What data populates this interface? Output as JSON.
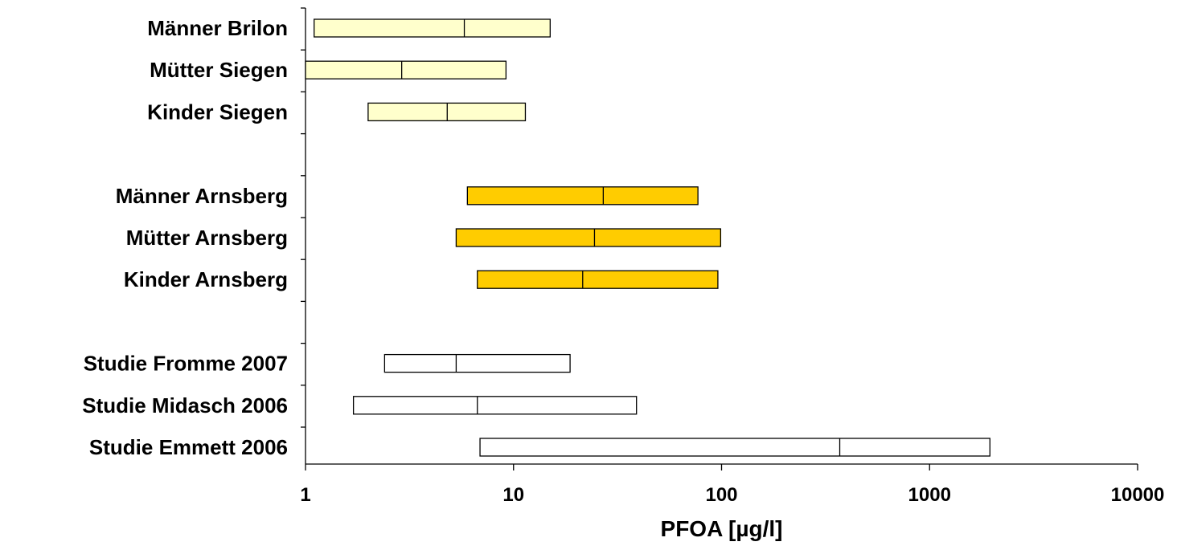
{
  "chart_data": {
    "type": "bar",
    "subtype": "floating-range (min / median / max)",
    "orientation": "horizontal",
    "x_scale": "log",
    "xlim": [
      1,
      10000
    ],
    "x_ticks": [
      1,
      10,
      100,
      1000,
      10000
    ],
    "x_tick_labels": [
      "1",
      "10",
      "100",
      "1000",
      "10000"
    ],
    "xlabel": "PFOA [µg/l]",
    "ylabel": "",
    "title": "",
    "grid": false,
    "legend": "none",
    "colors": {
      "pale_yellow": "#ffffcc",
      "gold": "#ffcc00",
      "white": "#ffffff",
      "axis": "#000000"
    },
    "groups": [
      {
        "color": "pale_yellow",
        "items": [
          {
            "label": "Männer Brilon",
            "min": 1.1,
            "median": 5.8,
            "max": 15.0
          },
          {
            "label": "Mütter Siegen",
            "min": 1.0,
            "median": 2.9,
            "max": 9.2
          },
          {
            "label": "Kinder Siegen",
            "min": 2.0,
            "median": 4.8,
            "max": 11.4
          }
        ]
      },
      {
        "color": "gold",
        "items": [
          {
            "label": "Männer Arnsberg",
            "min": 6.0,
            "median": 27.0,
            "max": 77.0
          },
          {
            "label": "Mütter Arnsberg",
            "min": 5.3,
            "median": 24.5,
            "max": 99.0
          },
          {
            "label": "Kinder Arnsberg",
            "min": 6.7,
            "median": 21.5,
            "max": 96.0
          }
        ]
      },
      {
        "color": "white",
        "items": [
          {
            "label": "Studie Fromme 2007",
            "min": 2.4,
            "median": 5.3,
            "max": 18.7
          },
          {
            "label": "Studie Midasch 2006",
            "min": 1.7,
            "median": 6.7,
            "max": 39.0
          },
          {
            "label": "Studie Emmett 2006",
            "min": 6.9,
            "median": 370,
            "max": 1950
          }
        ]
      }
    ]
  }
}
